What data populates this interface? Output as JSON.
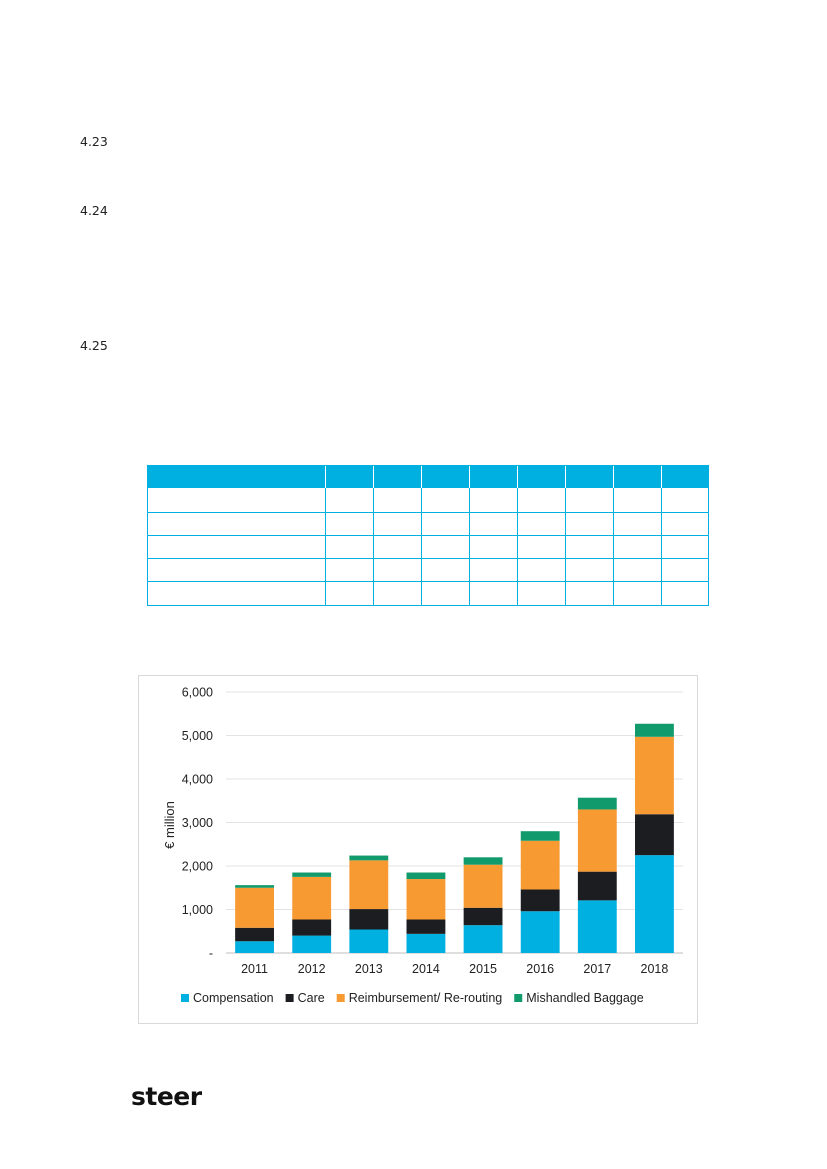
{
  "paragraphs": [
    "4.23",
    "4.24",
    "4.25"
  ],
  "chart_data": {
    "type": "bar",
    "stacked": true,
    "categories": [
      "2011",
      "2012",
      "2013",
      "2014",
      "2015",
      "2016",
      "2017",
      "2018"
    ],
    "series": [
      {
        "name": "Compensation",
        "color": "#00b0e0",
        "values": [
          270,
          400,
          540,
          440,
          640,
          960,
          1210,
          2250
        ]
      },
      {
        "name": "Care",
        "color": "#1c1d21",
        "values": [
          310,
          370,
          470,
          330,
          400,
          500,
          660,
          940
        ]
      },
      {
        "name": "Reimbursement/ Re-routing",
        "color": "#f79a32",
        "values": [
          920,
          980,
          1120,
          930,
          990,
          1120,
          1430,
          1780
        ]
      },
      {
        "name": "Mishandled Baggage",
        "color": "#119a6b",
        "values": [
          60,
          100,
          110,
          150,
          170,
          220,
          270,
          300
        ]
      }
    ],
    "ylabel": "€ million",
    "ylim": [
      0,
      6000
    ],
    "yticks": [
      "-",
      "1,000",
      "2,000",
      "3,000",
      "4,000",
      "5,000",
      "6,000"
    ],
    "grid": true,
    "legend": "bottom"
  },
  "logo_text": "steer"
}
